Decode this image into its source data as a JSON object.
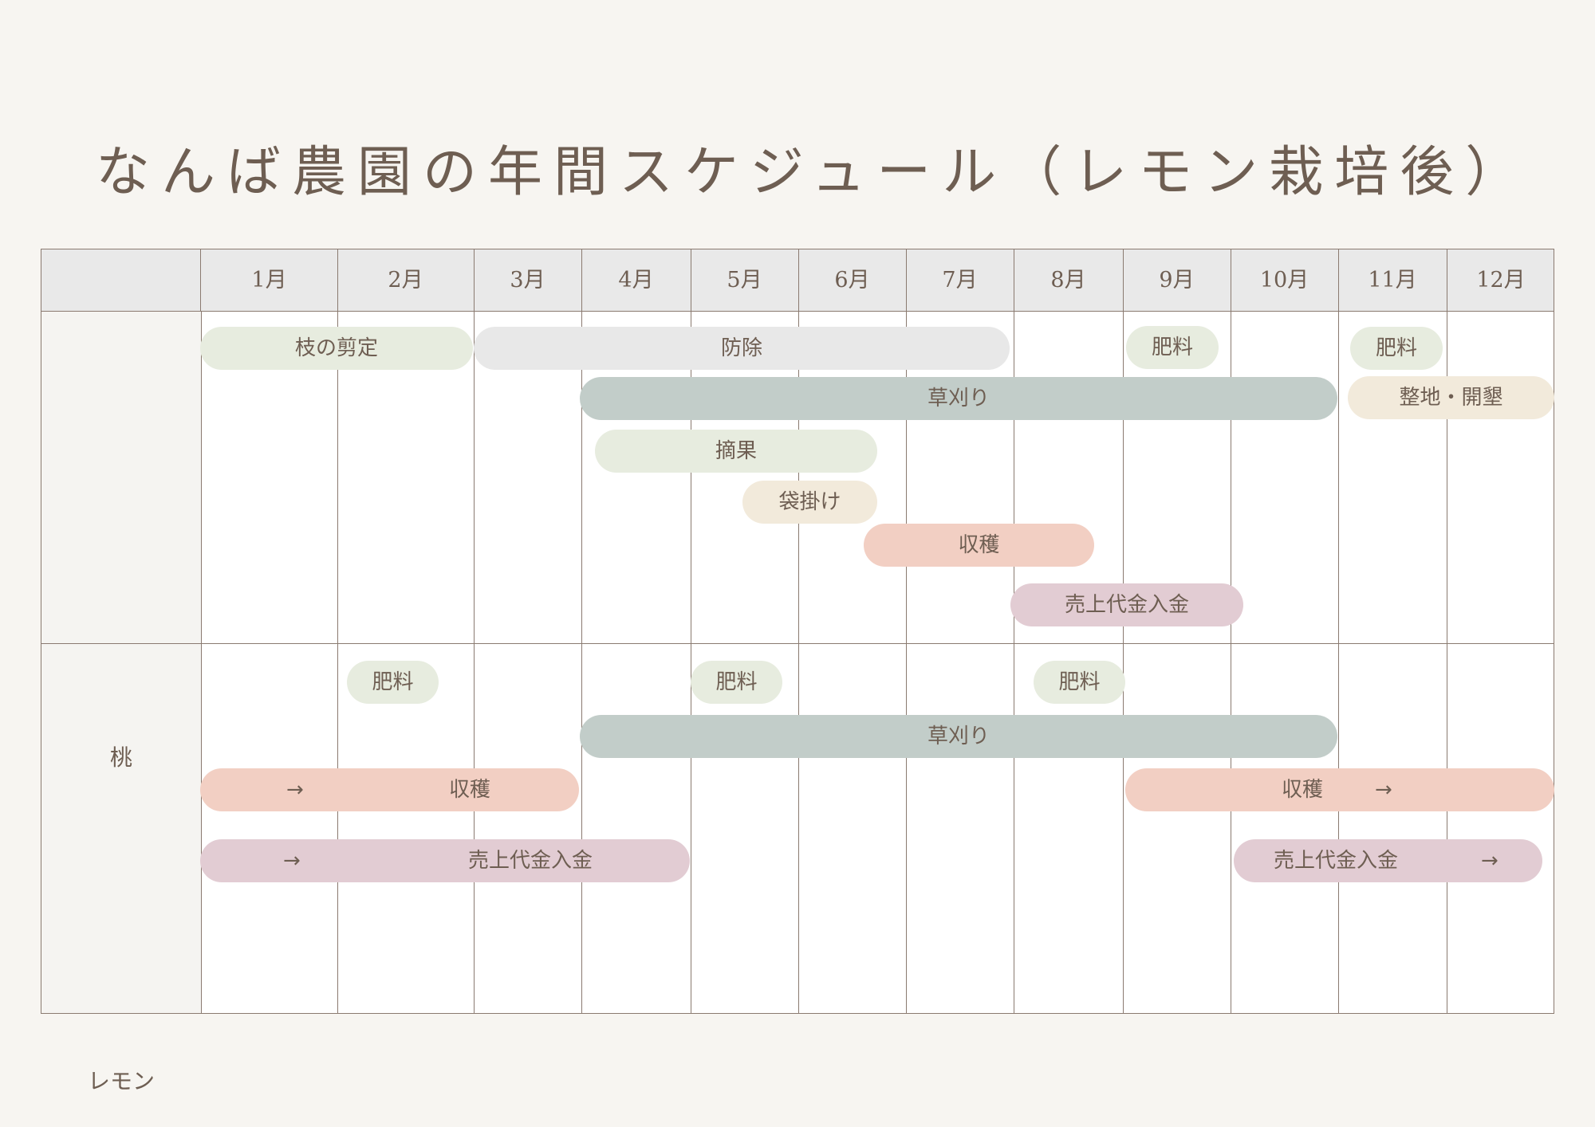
{
  "title": "なんば農園の年間スケジュール（レモン栽培後）",
  "months": [
    "1月",
    "2月",
    "3月",
    "4月",
    "5月",
    "6月",
    "7月",
    "8月",
    "9月",
    "10月",
    "11月",
    "12月"
  ],
  "rows": {
    "peach": "桃",
    "lemon": "レモン"
  },
  "arrow": "→",
  "peach_tasks": [
    {
      "label": "枝の剪定",
      "months": "1-2",
      "color": "#e7ecdf"
    },
    {
      "label": "防除",
      "months": "3-7",
      "color": "#e8e8e8"
    },
    {
      "label": "肥料",
      "months": "9",
      "color": "#e7ecdf"
    },
    {
      "label": "肥料",
      "months": "11",
      "color": "#e7ecdf"
    },
    {
      "label": "草刈り",
      "months": "4-10",
      "color": "#c2cdc9"
    },
    {
      "label": "整地・開墾",
      "months": "11-12",
      "color": "#f2eadb"
    },
    {
      "label": "摘果",
      "months": "4-6",
      "color": "#e7ecdf"
    },
    {
      "label": "袋掛け",
      "months": "5-6",
      "color": "#f2eadb"
    },
    {
      "label": "収穫",
      "months": "6-8",
      "color": "#f2cfc3"
    },
    {
      "label": "売上代金入金",
      "months": "8-10",
      "color": "#e2ccd3"
    }
  ],
  "lemon_tasks": [
    {
      "label": "肥料",
      "months": "2",
      "color": "#e7ecdf"
    },
    {
      "label": "肥料",
      "months": "5",
      "color": "#e7ecdf"
    },
    {
      "label": "肥料",
      "months": "8",
      "color": "#e7ecdf"
    },
    {
      "label": "草刈り",
      "months": "4-10",
      "color": "#c2cdc9"
    },
    {
      "label": "収穫",
      "months": "1-3",
      "color": "#f2cfc3"
    },
    {
      "label": "収穫",
      "months": "9-12",
      "color": "#f2cfc3"
    },
    {
      "label": "売上代金入金",
      "months": "1-4",
      "color": "#e2ccd3"
    },
    {
      "label": "売上代金入金",
      "months": "10-12",
      "color": "#e2ccd3"
    }
  ]
}
